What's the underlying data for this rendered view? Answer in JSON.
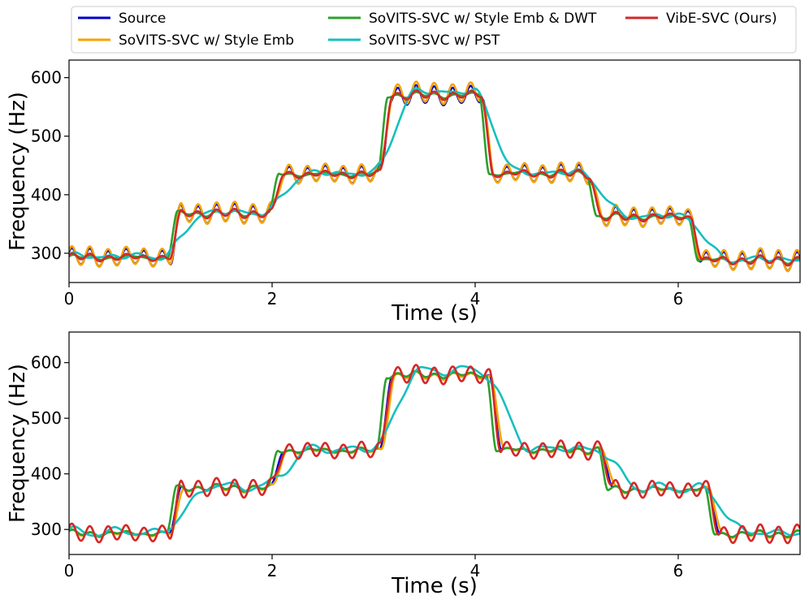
{
  "colors": {
    "source": "#0000cc",
    "style_emb": "#f5a300",
    "style_emb_dwt": "#2ca02c",
    "pst": "#17bfbf",
    "vibe": "#d62728"
  },
  "legend": {
    "entries": [
      {
        "key": "source",
        "label": "Source"
      },
      {
        "key": "style_emb",
        "label": "SoVITS-SVC w/ Style Emb"
      },
      {
        "key": "style_emb_dwt",
        "label": "SoVITS-SVC w/ Style Emb & DWT"
      },
      {
        "key": "pst",
        "label": "SoVITS-SVC w/ PST"
      },
      {
        "key": "vibe",
        "label": "VibE-SVC (Ours)"
      }
    ]
  },
  "chart_data": [
    {
      "type": "line",
      "xlabel": "Time (s)",
      "ylabel": "Frequency (Hz)",
      "xlim": [
        0,
        7.2
      ],
      "ylim": [
        250,
        630
      ],
      "xticks": [
        0,
        2,
        4,
        6
      ],
      "yticks": [
        300,
        400,
        500,
        600
      ],
      "xtick_labels": [
        "0",
        "2",
        "4",
        "6"
      ],
      "ytick_labels": [
        "300",
        "400",
        "500",
        "600"
      ],
      "segments": [
        {
          "t0": 0.0,
          "t1": 1.05,
          "f": 293
        },
        {
          "t0": 1.05,
          "t1": 2.05,
          "f": 368
        },
        {
          "t0": 2.05,
          "t1": 3.12,
          "f": 435
        },
        {
          "t0": 3.12,
          "t1": 4.12,
          "f": 570
        },
        {
          "t0": 4.12,
          "t1": 5.18,
          "f": 436
        },
        {
          "t0": 5.18,
          "t1": 6.18,
          "f": 362
        },
        {
          "t0": 6.18,
          "t1": 7.2,
          "f": 288
        }
      ],
      "series": [
        {
          "name": "Source",
          "key": "source",
          "vib_amp": 14,
          "vib_rate": 5.6,
          "shift": 0.0,
          "ramp": 0.05,
          "offset": 0
        },
        {
          "name": "SoVITS-SVC w/ Style Emb",
          "key": "style_emb",
          "vib_amp": 16,
          "vib_rate": 5.6,
          "shift": 0.0,
          "ramp": 0.06,
          "offset": 4
        },
        {
          "name": "SoVITS-SVC w/ Style Emb & DWT",
          "key": "style_emb_dwt",
          "vib_amp": 2,
          "vib_rate": 5.6,
          "shift": -0.03,
          "ramp": 0.05,
          "offset": 0
        },
        {
          "name": "SoVITS-SVC w/ PST",
          "key": "pst",
          "vib_amp": 4,
          "vib_rate": 3.0,
          "shift": 0.08,
          "ramp": 0.22,
          "offset": 6
        },
        {
          "name": "VibE-SVC (Ours)",
          "key": "vibe",
          "vib_amp": 5,
          "vib_rate": 5.6,
          "shift": 0.0,
          "ramp": 0.06,
          "offset": 0
        }
      ]
    },
    {
      "type": "line",
      "xlabel": "Time (s)",
      "ylabel": "Frequency (Hz)",
      "xlim": [
        0,
        7.2
      ],
      "ylim": [
        255,
        655
      ],
      "xticks": [
        0,
        2,
        4,
        6
      ],
      "yticks": [
        300,
        400,
        500,
        600
      ],
      "xtick_labels": [
        "0",
        "2",
        "4",
        "6"
      ],
      "ytick_labels": [
        "300",
        "400",
        "500",
        "600"
      ],
      "segments": [
        {
          "t0": 0.0,
          "t1": 1.05,
          "f": 293
        },
        {
          "t0": 1.05,
          "t1": 2.05,
          "f": 375
        },
        {
          "t0": 2.05,
          "t1": 3.12,
          "f": 442
        },
        {
          "t0": 3.12,
          "t1": 4.2,
          "f": 578
        },
        {
          "t0": 4.2,
          "t1": 5.3,
          "f": 443
        },
        {
          "t0": 5.3,
          "t1": 6.35,
          "f": 372
        },
        {
          "t0": 6.35,
          "t1": 7.2,
          "f": 292
        }
      ],
      "series": [
        {
          "name": "Source",
          "key": "source",
          "vib_amp": 3,
          "vib_rate": 5.6,
          "shift": 0.0,
          "ramp": 0.06,
          "offset": 0
        },
        {
          "name": "SoVITS-SVC w/ Style Emb",
          "key": "style_emb",
          "vib_amp": 4,
          "vib_rate": 5.6,
          "shift": 0.02,
          "ramp": 0.07,
          "offset": -2
        },
        {
          "name": "SoVITS-SVC w/ Style Emb & DWT",
          "key": "style_emb_dwt",
          "vib_amp": 3,
          "vib_rate": 5.6,
          "shift": -0.04,
          "ramp": 0.05,
          "offset": 0
        },
        {
          "name": "SoVITS-SVC w/ PST",
          "key": "pst",
          "vib_amp": 6,
          "vib_rate": 2.6,
          "shift": 0.1,
          "ramp": 0.25,
          "offset": 8
        },
        {
          "name": "VibE-SVC (Ours)",
          "key": "vibe",
          "vib_amp": 14,
          "vib_rate": 5.6,
          "shift": 0.0,
          "ramp": 0.06,
          "offset": 0
        }
      ]
    }
  ]
}
